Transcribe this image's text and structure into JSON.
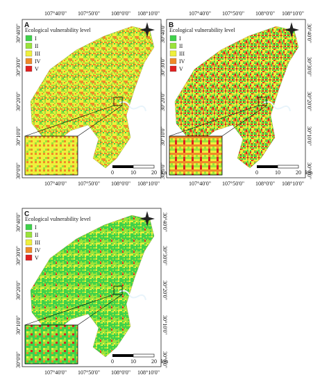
{
  "legend_colors": [
    "#3fd24a",
    "#9be33a",
    "#eef03c",
    "#f08a28",
    "#e02020"
  ],
  "panels": [
    {
      "label": "A",
      "legend_title": "Ecological vulnerability level",
      "legend": [
        "I",
        "II",
        "III",
        "IV",
        "V"
      ],
      "lon_labels_top": [
        "107°40'0\"",
        "107°50'0\"",
        "108°0'0\"",
        "108°10'0\""
      ],
      "lon_labels_bottom": [
        "107°40'0\"",
        "107°50'0\"",
        "108°0'0\"",
        "108°10'0\""
      ],
      "lat_labels_left": [
        "30°40'0\"",
        "30°30'0\"",
        "30°20'0\"",
        "30°10'0\"",
        "30°0'0\""
      ],
      "scale_labels": [
        "0",
        "10",
        "20",
        "km"
      ]
    },
    {
      "label": "B",
      "legend_title": "Ecological vulnerability level",
      "legend": [
        "I",
        "II",
        "III",
        "IV",
        "V"
      ],
      "lon_labels_top": [
        "107°40'0\"",
        "107°50'0\"",
        "108°0'0\"",
        "108°10'0\""
      ],
      "lon_labels_bottom": [
        "107°40'0\"",
        "107°50'0\"",
        "108°0'0\"",
        "108°10'0\""
      ],
      "lat_labels_left": [
        "30°40'0\"",
        "30°30'0\"",
        "30°20'0\"",
        "30°10'0\"",
        "30°0'0\""
      ],
      "lat_labels_right": [
        "30°40'0\"",
        "30°30'0\"",
        "30°20'0\"",
        "30°10'0\"",
        "30°0'0\""
      ],
      "scale_labels": [
        "0",
        "10",
        "20",
        "km"
      ]
    },
    {
      "label": "C",
      "legend_title": "Ecological vulnerability level",
      "legend": [
        "I",
        "II",
        "III",
        "IV",
        "V"
      ],
      "lon_labels_bottom": [
        "107°40'0\"",
        "107°50'0\"",
        "108°0'0\"",
        "108°10'0\""
      ],
      "lat_labels_left": [
        "30°40'0\"",
        "30°30'0\"",
        "30°20'0\"",
        "30°10'0\"",
        "30°0'0\""
      ],
      "lat_labels_right": [
        "30°40'0\"",
        "30°30'0\"",
        "30°20'0\"",
        "30°10'0\"",
        "30°0'0\""
      ],
      "scale_labels": [
        "0",
        "10",
        "20",
        "km"
      ]
    }
  ]
}
